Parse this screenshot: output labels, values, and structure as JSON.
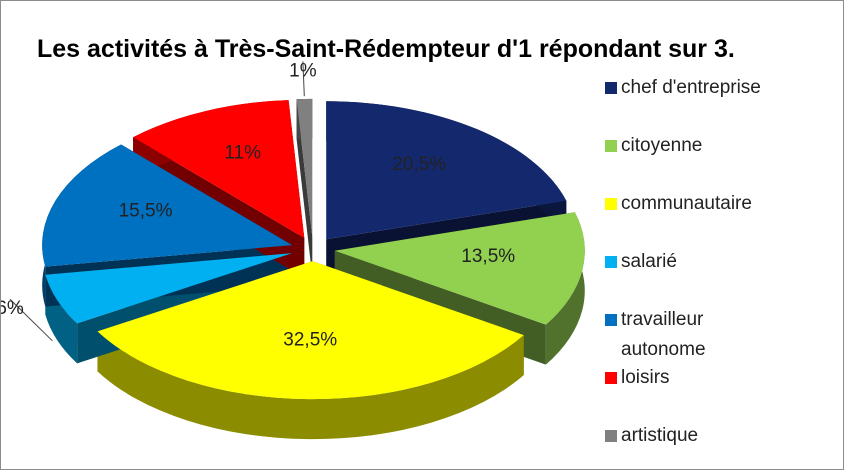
{
  "chart_data": {
    "type": "pie",
    "title": "Les activités à Très-Saint-Rédempteur d'1 répondant sur 3.",
    "categories": [
      "chef d'entreprise",
      "citoyenne",
      "communautaire",
      "salarié",
      "travailleur autonome",
      "loisirs",
      "artistique"
    ],
    "values": [
      20.5,
      13.5,
      32.5,
      6,
      15.5,
      11,
      1
    ],
    "value_labels": [
      "20,5%",
      "13,5%",
      "32,5%",
      "6%",
      "15,5%",
      "11%",
      "1%"
    ],
    "colors": [
      "#14286e",
      "#92d050",
      "#ffff00",
      "#00b0f0",
      "#0070c0",
      "#ff0000",
      "#808080"
    ],
    "legend": "right"
  }
}
